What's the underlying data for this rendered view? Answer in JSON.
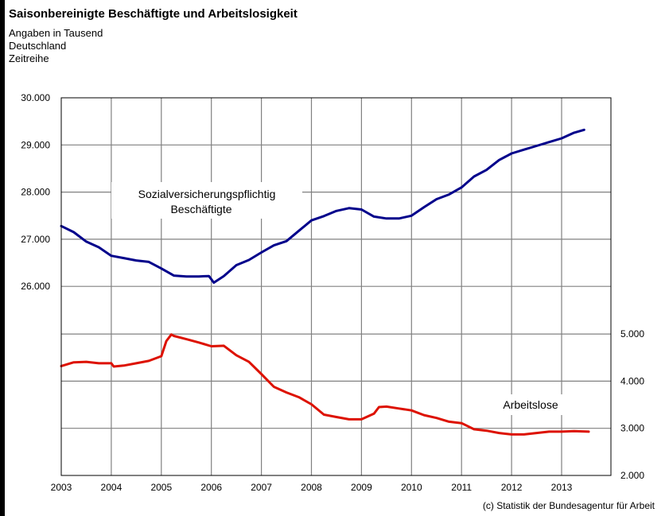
{
  "header": {
    "title": "Saisonbereinigte Beschäftigte und Arbeitslosigkeit",
    "subtitles": [
      "Angaben in Tausend",
      "Deutschland",
      "Zeitreihe"
    ]
  },
  "footer": {
    "credit": "(c) Statistik der Bundesagentur für Arbeit"
  },
  "chart_data": {
    "type": "line",
    "title": "Saisonbereinigte Beschäftigte und Arbeitslosigkeit",
    "subtitle": "Angaben in Tausend; Deutschland; Zeitreihe",
    "xlabel": "",
    "x_ticks": [
      "2003",
      "2004",
      "2005",
      "2006",
      "2007",
      "2008",
      "2009",
      "2010",
      "2011",
      "2012",
      "2013"
    ],
    "xlim": [
      2003,
      2014
    ],
    "y_left": {
      "ticks": [
        "30.000",
        "29.000",
        "28.000",
        "27.000",
        "26.000"
      ],
      "range": [
        26000,
        30000
      ]
    },
    "y_right": {
      "ticks": [
        "5.000",
        "4.000",
        "3.000",
        "2.000"
      ],
      "range": [
        2000,
        5000
      ]
    },
    "grid": true,
    "series": [
      {
        "name": "Sozialversicherungspflichtig Beschäftigte",
        "label_lines": [
          "Sozialversicherungspflichtig",
          "Beschäftigte"
        ],
        "axis": "left",
        "color": "#00008B",
        "x": [
          2003.0,
          2003.25,
          2003.5,
          2003.75,
          2004.0,
          2004.25,
          2004.5,
          2004.75,
          2005.0,
          2005.25,
          2005.5,
          2005.75,
          2005.95,
          2006.05,
          2006.25,
          2006.5,
          2006.75,
          2007.0,
          2007.25,
          2007.5,
          2007.75,
          2008.0,
          2008.25,
          2008.5,
          2008.75,
          2009.0,
          2009.25,
          2009.5,
          2009.75,
          2010.0,
          2010.25,
          2010.5,
          2010.75,
          2011.0,
          2011.25,
          2011.5,
          2011.75,
          2012.0,
          2012.25,
          2012.5,
          2012.75,
          2013.0,
          2013.25,
          2013.45
        ],
        "values": [
          27280,
          27150,
          26950,
          26830,
          26650,
          26600,
          26550,
          26520,
          26380,
          26230,
          26210,
          26210,
          26220,
          26080,
          26220,
          26450,
          26560,
          26720,
          26870,
          26960,
          27180,
          27400,
          27490,
          27600,
          27660,
          27630,
          27480,
          27440,
          27440,
          27500,
          27680,
          27850,
          27950,
          28100,
          28330,
          28470,
          28680,
          28820,
          28900,
          28980,
          29060,
          29140,
          29260,
          29320
        ]
      },
      {
        "name": "Arbeitslose",
        "label_lines": [
          "Arbeitslose"
        ],
        "axis": "right",
        "color": "#DD1100",
        "x": [
          2003.0,
          2003.25,
          2003.5,
          2003.75,
          2004.0,
          2004.05,
          2004.25,
          2004.5,
          2004.75,
          2005.0,
          2005.1,
          2005.2,
          2005.25,
          2005.5,
          2005.75,
          2006.0,
          2006.25,
          2006.5,
          2006.75,
          2007.0,
          2007.25,
          2007.5,
          2007.75,
          2008.0,
          2008.25,
          2008.5,
          2008.75,
          2009.0,
          2009.25,
          2009.35,
          2009.5,
          2009.75,
          2010.0,
          2010.25,
          2010.5,
          2010.75,
          2011.0,
          2011.25,
          2011.5,
          2011.75,
          2012.0,
          2012.25,
          2012.5,
          2012.75,
          2013.0,
          2013.25,
          2013.54
        ],
        "values": [
          4320,
          4400,
          4410,
          4380,
          4380,
          4310,
          4330,
          4380,
          4430,
          4530,
          4850,
          4990,
          4960,
          4890,
          4820,
          4740,
          4750,
          4550,
          4410,
          4150,
          3880,
          3760,
          3660,
          3510,
          3290,
          3240,
          3190,
          3190,
          3310,
          3450,
          3460,
          3420,
          3380,
          3280,
          3220,
          3140,
          3110,
          2980,
          2950,
          2900,
          2870,
          2870,
          2900,
          2930,
          2930,
          2940,
          2930
        ]
      }
    ]
  }
}
